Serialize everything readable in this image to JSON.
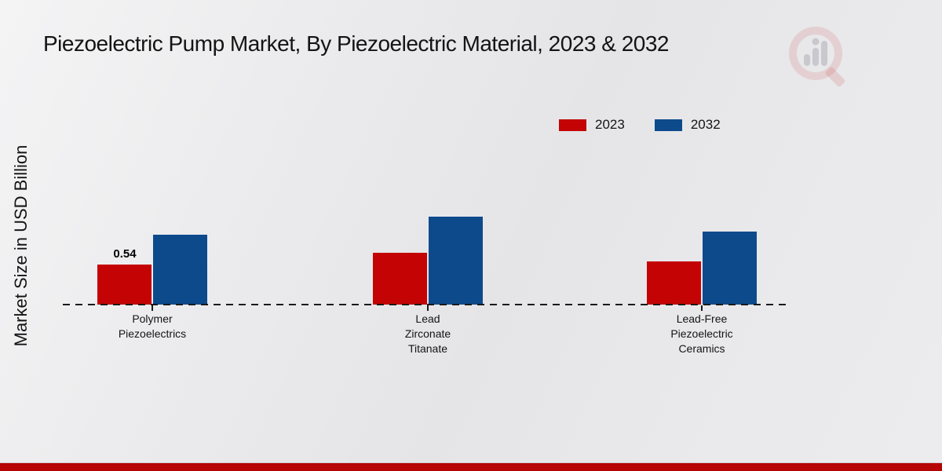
{
  "page": {
    "title": "Piezoelectric Pump Market, By Piezoelectric Material, 2023 & 2032",
    "y_axis_label": "Market Size in USD Billion"
  },
  "colors": {
    "series_2023": "#c40404",
    "series_2032": "#0d4a8c",
    "footer_band": "#b70404",
    "baseline": "#1a1a1a"
  },
  "legend": {
    "items": [
      {
        "label": "2023",
        "color": "#c40404"
      },
      {
        "label": "2032",
        "color": "#0d4a8c"
      }
    ]
  },
  "chart_data": {
    "type": "bar",
    "title": "Piezoelectric Pump Market, By Piezoelectric Material, 2023 & 2032",
    "xlabel": "",
    "ylabel": "Market Size in USD Billion",
    "categories": [
      "Polymer Piezoelectrics",
      "Lead Zirconate Titanate",
      "Lead-Free Piezoelectric Ceramics"
    ],
    "category_lines": [
      [
        "Polymer",
        "Piezoelectrics"
      ],
      [
        "Lead",
        "Zirconate",
        "Titanate"
      ],
      [
        "Lead-Free",
        "Piezoelectric",
        "Ceramics"
      ]
    ],
    "series": [
      {
        "name": "2023",
        "color": "#c40404",
        "values": [
          0.54,
          0.69,
          0.58
        ]
      },
      {
        "name": "2032",
        "color": "#0d4a8c",
        "values": [
          0.94,
          1.18,
          0.98
        ]
      }
    ],
    "data_labels": [
      {
        "series": "2023",
        "category": "Polymer Piezoelectrics",
        "value_index": 0,
        "text": "0.54"
      }
    ],
    "ylim": [
      0,
      1.4
    ],
    "grid": false,
    "baseline_style": "dashed",
    "legend_position": "top-right"
  },
  "watermark": {
    "icon": "market-research-future-logo"
  }
}
